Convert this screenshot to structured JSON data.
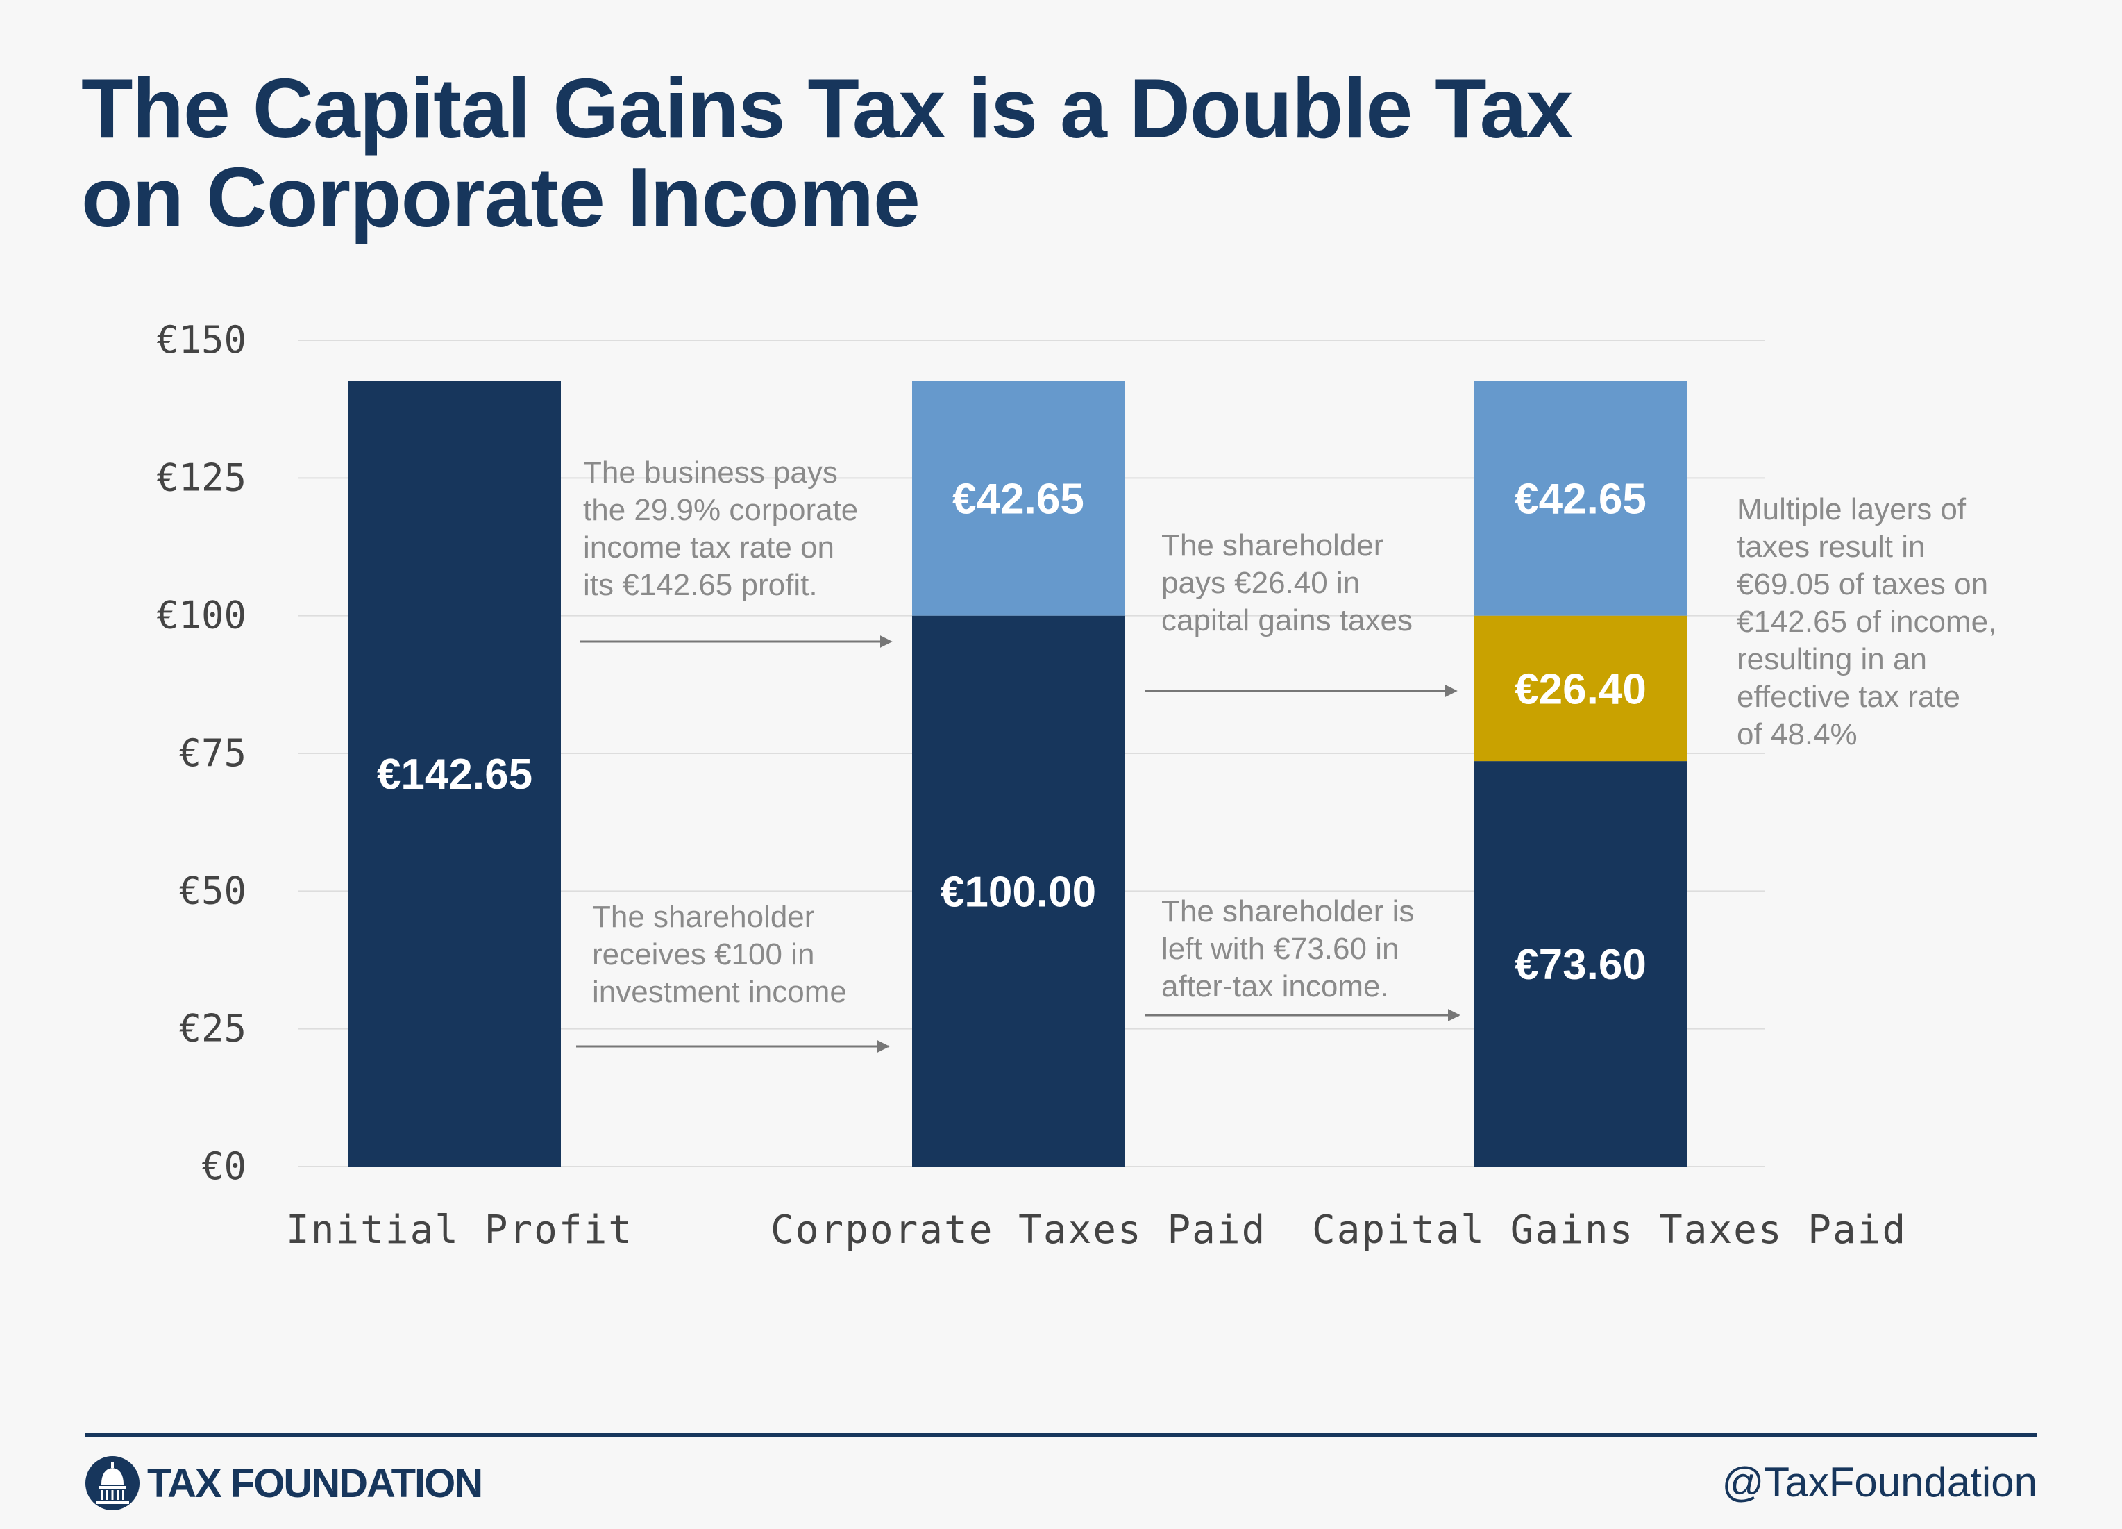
{
  "page": {
    "title_lines": [
      "The Capital Gains Tax is a Double Tax",
      "on Corporate Income"
    ]
  },
  "chart_data": {
    "type": "bar",
    "stacked": true,
    "title": "The Capital Gains Tax is a Double Tax on Corporate Income",
    "categories": [
      "Initial Profit",
      "Corporate Taxes Paid",
      "Capital Gains Taxes Paid"
    ],
    "ylim": [
      0,
      150
    ],
    "yticks": [
      0,
      25,
      50,
      75,
      100,
      125,
      150
    ],
    "ytick_labels": [
      "€0",
      "€25",
      "€50",
      "€75",
      "€100",
      "€125",
      "€150"
    ],
    "grid": true,
    "bars": [
      {
        "category": "Initial Profit",
        "segments": [
          {
            "value": 142.65,
            "label": "€142.65",
            "color": "#17365c"
          }
        ]
      },
      {
        "category": "Corporate Taxes Paid",
        "segments": [
          {
            "value": 100.0,
            "label": "€100.00",
            "color": "#17365c"
          },
          {
            "value": 42.65,
            "label": "€42.65",
            "color": "#6699cc"
          }
        ]
      },
      {
        "category": "Capital Gains Taxes Paid",
        "segments": [
          {
            "value": 73.6,
            "label": "€73.60",
            "color": "#17365c"
          },
          {
            "value": 26.4,
            "label": "€26.40",
            "color": "#c9a200"
          },
          {
            "value": 42.65,
            "label": "€42.65",
            "color": "#6699cc"
          }
        ]
      }
    ],
    "annotations": [
      {
        "id": "business-pays",
        "lines": [
          "The business pays",
          "the 29.9% corporate",
          "income tax rate on",
          "its €142.65 profit."
        ]
      },
      {
        "id": "shareholder-receives",
        "lines": [
          "The shareholder",
          "receives €100 in",
          "investment income"
        ]
      },
      {
        "id": "shareholder-pays",
        "lines": [
          "The shareholder",
          "pays €26.40 in",
          "capital gains taxes"
        ]
      },
      {
        "id": "shareholder-left",
        "lines": [
          "The shareholder is",
          "left with €73.60 in",
          "after-tax income."
        ]
      },
      {
        "id": "multiple-layers",
        "lines": [
          "Multiple layers of",
          "taxes result in",
          "€69.05 of taxes on",
          "€142.65 of income,",
          "resulting in an",
          "effective tax rate",
          "of 48.4%"
        ]
      }
    ]
  },
  "footer": {
    "brand": "TAX FOUNDATION",
    "handle": "@TaxFoundation"
  },
  "colors": {
    "navy": "#17365c",
    "light_blue": "#6699cc",
    "gold": "#c9a200",
    "annotation_gray": "#8a8a8a",
    "grid": "#dddddd"
  }
}
